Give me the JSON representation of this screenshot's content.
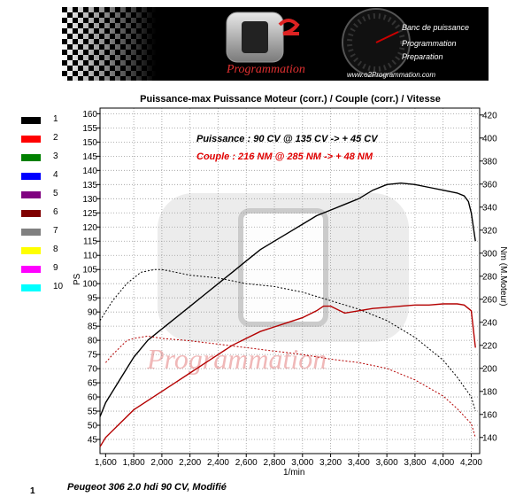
{
  "banner": {
    "brand_script": "Programmation",
    "service_1": "Banc de puissance",
    "service_2": "Programmation",
    "service_3": "Preparation",
    "website": "www.o2Programmation.com"
  },
  "legend": [
    {
      "label": "1",
      "color": "#000000"
    },
    {
      "label": "2",
      "color": "#ff0000"
    },
    {
      "label": "3",
      "color": "#008000"
    },
    {
      "label": "4",
      "color": "#0000ff"
    },
    {
      "label": "5",
      "color": "#800080"
    },
    {
      "label": "6",
      "color": "#800000"
    },
    {
      "label": "7",
      "color": "#808080"
    },
    {
      "label": "8",
      "color": "#ffff00"
    },
    {
      "label": "9",
      "color": "#ff00ff"
    },
    {
      "label": "10",
      "color": "#00ffff"
    }
  ],
  "watermark_text": "Programmation",
  "footer": {
    "number": "1",
    "text": "Peugeot 306 2.0 hdi 90 CV, Modifié"
  },
  "chart_data": {
    "type": "line",
    "title": "Puissance-max Puissance Moteur (corr.) / Couple (corr.) / Vitesse",
    "xlabel": "1/min",
    "ylabel_left": "PS",
    "ylabel_right": "Nm (M.Moteur)",
    "xlim": [
      1560,
      4260
    ],
    "ylim_left": [
      40,
      162
    ],
    "ylim_right": [
      126,
      426
    ],
    "x_ticks": [
      1600,
      1800,
      2000,
      2200,
      2400,
      2600,
      2800,
      3000,
      3200,
      3400,
      3600,
      3800,
      4000,
      4200
    ],
    "x_tick_labels": [
      "1,600",
      "1,800",
      "2,000",
      "2,200",
      "2,400",
      "2,600",
      "2,800",
      "3,000",
      "3,200",
      "3,400",
      "3,600",
      "3,800",
      "4,000",
      "4,200"
    ],
    "y_left_ticks": [
      45,
      50,
      55,
      60,
      65,
      70,
      75,
      80,
      85,
      90,
      95,
      100,
      105,
      110,
      115,
      120,
      125,
      130,
      135,
      140,
      145,
      150,
      155,
      160
    ],
    "y_right_ticks": [
      140,
      160,
      180,
      200,
      220,
      240,
      260,
      280,
      300,
      320,
      340,
      360,
      380,
      400,
      420
    ],
    "grid": true,
    "annotations": [
      {
        "text": "Puissance : 90 CV @ 135 CV  -> + 45 CV",
        "color": "#000000"
      },
      {
        "text": "Couple : 216 NM @ 285 NM  -> + 48 NM",
        "color": "#e00000"
      }
    ],
    "series": [
      {
        "name": "1",
        "axis": "left",
        "style": "solid",
        "color": "#000000",
        "x": [
          1560,
          1600,
          1700,
          1800,
          1900,
          2000,
          2100,
          2200,
          2300,
          2400,
          2500,
          2600,
          2700,
          2800,
          2900,
          3000,
          3100,
          3200,
          3300,
          3400,
          3500,
          3600,
          3700,
          3800,
          3900,
          4000,
          4100,
          4150,
          4180,
          4200,
          4230
        ],
        "y": [
          53,
          58,
          66,
          74,
          80,
          84,
          88,
          92,
          96,
          100,
          104,
          108,
          112,
          115,
          118,
          121,
          124,
          126,
          128,
          130,
          133,
          135,
          135.5,
          135,
          134,
          133,
          132,
          131,
          129,
          125,
          115
        ]
      },
      {
        "name": "1",
        "axis": "left",
        "style": "dotted",
        "color": "#000000",
        "x": [
          1560,
          1650,
          1750,
          1850,
          1950,
          2000,
          2100,
          2200,
          2400,
          2600,
          2800,
          3000,
          3200,
          3400,
          3600,
          3800,
          4000,
          4100,
          4200,
          4230
        ],
        "y": [
          87,
          94,
          100,
          104,
          105,
          105,
          104,
          103,
          102,
          100,
          99,
          97,
          94,
          91,
          87,
          81,
          73,
          67,
          60,
          55
        ]
      },
      {
        "name": "2",
        "axis": "right",
        "style": "solid",
        "color": "#b40000",
        "x": [
          1560,
          1600,
          1700,
          1800,
          1900,
          2000,
          2100,
          2200,
          2300,
          2400,
          2500,
          2600,
          2700,
          2800,
          2900,
          3000,
          3100,
          3150,
          3200,
          3300,
          3400,
          3500,
          3600,
          3700,
          3800,
          3900,
          4000,
          4100,
          4150,
          4200,
          4230
        ],
        "y": [
          132,
          140,
          152,
          164,
          172,
          180,
          188,
          196,
          204,
          212,
          220,
          226,
          232,
          236,
          240,
          244,
          250,
          254,
          254,
          248,
          250,
          252,
          253,
          254,
          255,
          255,
          256,
          256,
          255,
          250,
          218
        ]
      },
      {
        "name": "2",
        "axis": "right",
        "style": "dotted",
        "color": "#b40000",
        "x": [
          1600,
          1650,
          1700,
          1750,
          1800,
          1850,
          1900,
          2000,
          2200,
          2400,
          2600,
          2800,
          3000,
          3200,
          3400,
          3600,
          3800,
          4000,
          4100,
          4200,
          4230
        ],
        "y": [
          205,
          212,
          218,
          224,
          226,
          227,
          228,
          226,
          224,
          221,
          218,
          215,
          212,
          208,
          205,
          200,
          190,
          176,
          165,
          152,
          140
        ]
      }
    ]
  }
}
